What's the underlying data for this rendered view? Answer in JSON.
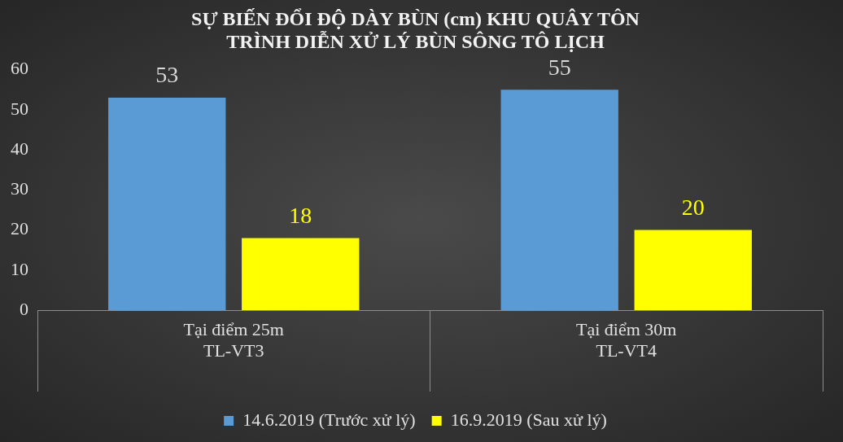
{
  "chart_data": {
    "type": "bar",
    "title": "SỰ BIẾN ĐỔI ĐỘ DÀY BÙN (cm) KHU QUÂY TÔN\nTRÌNH DIỄN XỬ LÝ BÙN SÔNG TÔ LỊCH",
    "categories": [
      "Tại điểm 25m\nTL-VT3",
      "Tại điểm 30m\nTL-VT4"
    ],
    "series": [
      {
        "name": "14.6.2019 (Trước xử lý)",
        "color": "#5b9bd5",
        "values": [
          53,
          55
        ]
      },
      {
        "name": "16.9.2019 (Sau xử lý)",
        "color": "#ffff00",
        "values": [
          18,
          20
        ]
      }
    ],
    "ylim": [
      0,
      60
    ],
    "yticks": [
      0,
      10,
      20,
      30,
      40,
      50,
      60
    ],
    "grid": false,
    "legend": "bottom",
    "data_labels": true
  }
}
